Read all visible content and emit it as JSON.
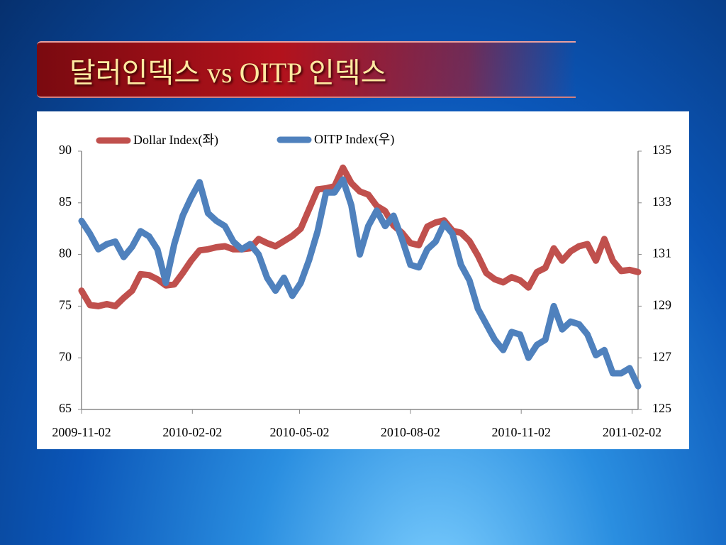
{
  "title": "달러인덱스 vs OITP 인덱스",
  "chart_data": {
    "type": "line",
    "x": [
      "2009-11-02",
      "2009-11-09",
      "2009-11-16",
      "2009-11-23",
      "2009-11-30",
      "2009-12-07",
      "2009-12-14",
      "2009-12-21",
      "2009-12-28",
      "2010-01-04",
      "2010-01-11",
      "2010-01-18",
      "2010-01-25",
      "2010-02-01",
      "2010-02-08",
      "2010-02-15",
      "2010-02-22",
      "2010-03-01",
      "2010-03-08",
      "2010-03-15",
      "2010-03-22",
      "2010-03-29",
      "2010-04-05",
      "2010-04-12",
      "2010-04-19",
      "2010-04-26",
      "2010-05-03",
      "2010-05-10",
      "2010-05-17",
      "2010-05-24",
      "2010-05-31",
      "2010-06-07",
      "2010-06-14",
      "2010-06-21",
      "2010-06-28",
      "2010-07-05",
      "2010-07-12",
      "2010-07-19",
      "2010-07-26",
      "2010-08-02",
      "2010-08-09",
      "2010-08-16",
      "2010-08-23",
      "2010-08-30",
      "2010-09-06",
      "2010-09-13",
      "2010-09-20",
      "2010-09-27",
      "2010-10-04",
      "2010-10-11",
      "2010-10-18",
      "2010-10-25",
      "2010-11-01",
      "2010-11-08",
      "2010-11-15",
      "2010-11-22",
      "2010-11-29",
      "2010-12-06",
      "2010-12-13",
      "2010-12-20",
      "2010-12-27",
      "2011-01-03",
      "2011-01-10",
      "2011-01-17",
      "2011-01-24",
      "2011-01-31",
      "2011-02-07"
    ],
    "series": [
      {
        "name": "Dollar Index(좌)",
        "color": "#c0504d",
        "axis": "y",
        "values": [
          76.5,
          75.1,
          75.0,
          75.2,
          75.0,
          75.8,
          76.5,
          78.1,
          78.0,
          77.6,
          77.0,
          77.1,
          78.2,
          79.4,
          80.4,
          80.5,
          80.7,
          80.8,
          80.5,
          80.5,
          80.6,
          81.5,
          81.1,
          80.8,
          81.3,
          81.8,
          82.5,
          84.4,
          86.3,
          86.4,
          86.6,
          88.4,
          86.9,
          86.1,
          85.8,
          84.7,
          84.2,
          82.8,
          82.1,
          81.1,
          80.9,
          82.7,
          83.1,
          83.3,
          82.3,
          82.1,
          81.3,
          79.9,
          78.2,
          77.6,
          77.3,
          77.8,
          77.5,
          76.8,
          78.3,
          78.7,
          80.6,
          79.4,
          80.3,
          80.8,
          81.0,
          79.4,
          81.5,
          79.4,
          78.4,
          78.5,
          78.3
        ]
      },
      {
        "name": "OITP Index(우)",
        "color": "#4f81bd",
        "axis": "y2",
        "values": [
          132.3,
          131.8,
          131.2,
          131.4,
          131.5,
          130.9,
          131.3,
          131.9,
          131.7,
          131.2,
          129.9,
          131.4,
          132.5,
          133.2,
          133.8,
          132.6,
          132.3,
          132.1,
          131.5,
          131.2,
          131.4,
          131.0,
          130.1,
          129.6,
          130.1,
          129.4,
          129.9,
          130.8,
          131.9,
          133.4,
          133.4,
          133.9,
          132.9,
          131.0,
          132.1,
          132.7,
          132.1,
          132.5,
          131.6,
          130.6,
          130.5,
          131.2,
          131.5,
          132.2,
          131.8,
          130.6,
          130.0,
          128.9,
          128.3,
          127.7,
          127.3,
          128.0,
          127.9,
          127.0,
          127.5,
          127.7,
          129.0,
          128.1,
          128.4,
          128.3,
          127.9,
          127.1,
          127.3,
          126.4,
          126.4,
          126.6,
          125.9
        ]
      }
    ],
    "xlim": [
      "2009-11-02",
      "2011-02-07"
    ],
    "xticks": [
      "2009-11-02",
      "2010-02-02",
      "2010-05-02",
      "2010-08-02",
      "2010-11-02",
      "2011-02-02"
    ],
    "ylim": [
      65,
      90
    ],
    "yticks": [
      65,
      70,
      75,
      80,
      85,
      90
    ],
    "y2lim": [
      125,
      135
    ],
    "y2ticks": [
      125,
      127,
      129,
      131,
      133,
      135
    ],
    "legend": "top"
  }
}
